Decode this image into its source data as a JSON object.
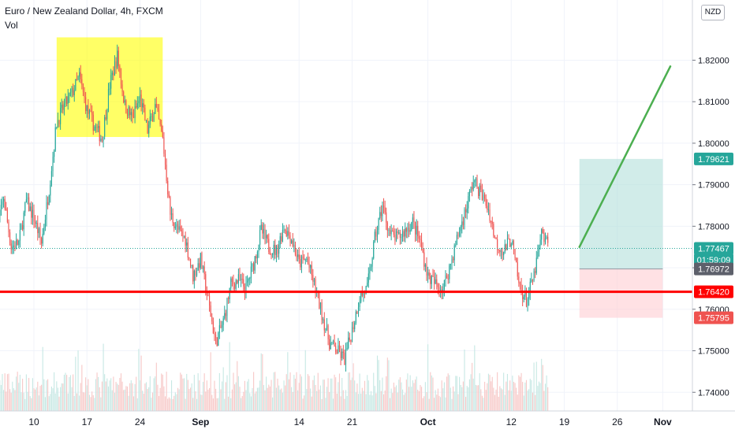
{
  "header": {
    "title": "Euro / New Zealand Dollar, 4h, FXCM",
    "indicator": "Vol",
    "currency": "NZD"
  },
  "colors": {
    "up": "#26a69a",
    "down": "#ef5350",
    "volume_up": "#c7e8e4",
    "volume_down": "#f7c9c8",
    "support": "#ff0000",
    "highlight": "#ffff00",
    "target_zone": "#b2dfdb",
    "stop_zone": "#ffcdd2",
    "projection": "#4caf50",
    "grid": "#f0f3fa"
  },
  "chart_data": {
    "type": "candlestick",
    "y_range": [
      1.7355,
      1.8345
    ],
    "y_ticks": [
      "1.74000",
      "1.75000",
      "1.76000",
      "1.77000",
      "1.78000",
      "1.79000",
      "1.80000",
      "1.81000",
      "1.82000"
    ],
    "x_ticks": [
      "10",
      "17",
      "24",
      "Sep",
      "14",
      "21",
      "Oct",
      "12",
      "19",
      "26",
      "Nov"
    ],
    "price_labels": [
      {
        "text": "1.79621",
        "value": 1.79621,
        "color": "#26a69a"
      },
      {
        "text": "1.77467",
        "value": 1.77467,
        "color": "#26a69a"
      },
      {
        "text": "01:59:09",
        "value": 1.7719,
        "color": "#26a69a"
      },
      {
        "text": "1.76972",
        "value": 1.76972,
        "color": "#5d606b"
      },
      {
        "text": "1.76420",
        "value": 1.7642,
        "color": "#ff0000"
      },
      {
        "text": "1.75795",
        "value": 1.75795,
        "color": "#ef5350"
      }
    ],
    "support_level": 1.7642,
    "last_price": 1.77467,
    "highlight_box": {
      "from": "Aug 13",
      "to": "Aug 27",
      "low": 1.8015,
      "high": 1.8255
    },
    "position": {
      "from": "Oct 21",
      "to": "Nov 1",
      "entry": 1.76972,
      "target": 1.79621,
      "stop": 1.75795
    },
    "projection": {
      "from_date": "Oct 21",
      "from_price": 1.775,
      "to_date": "Nov 2",
      "to_price": 1.8185
    },
    "price_path": [
      {
        "t": "Aug 5",
        "p": 1.777
      },
      {
        "t": "Aug 6",
        "p": 1.787
      },
      {
        "t": "Aug 7",
        "p": 1.775
      },
      {
        "t": "Aug 8",
        "p": 1.776
      },
      {
        "t": "Aug 9",
        "p": 1.786
      },
      {
        "t": "Aug 10",
        "p": 1.782
      },
      {
        "t": "Aug 11",
        "p": 1.776
      },
      {
        "t": "Aug 12",
        "p": 1.789
      },
      {
        "t": "Aug 13",
        "p": 1.805
      },
      {
        "t": "Aug 14",
        "p": 1.809
      },
      {
        "t": "Aug 15",
        "p": 1.812
      },
      {
        "t": "Aug 16",
        "p": 1.816
      },
      {
        "t": "Aug 17",
        "p": 1.808
      },
      {
        "t": "Aug 18",
        "p": 1.804
      },
      {
        "t": "Aug 19",
        "p": 1.801
      },
      {
        "t": "Aug 20",
        "p": 1.814
      },
      {
        "t": "Aug 21",
        "p": 1.821
      },
      {
        "t": "Aug 22",
        "p": 1.809
      },
      {
        "t": "Aug 23",
        "p": 1.806
      },
      {
        "t": "Aug 24",
        "p": 1.811
      },
      {
        "t": "Aug 25",
        "p": 1.803
      },
      {
        "t": "Aug 26",
        "p": 1.809
      },
      {
        "t": "Aug 27",
        "p": 1.801
      },
      {
        "t": "Aug 28",
        "p": 1.783
      },
      {
        "t": "Aug 29",
        "p": 1.779
      },
      {
        "t": "Aug 30",
        "p": 1.777
      },
      {
        "t": "Aug 31",
        "p": 1.768
      },
      {
        "t": "Sep 1",
        "p": 1.772
      },
      {
        "t": "Sep 2",
        "p": 1.762
      },
      {
        "t": "Sep 3",
        "p": 1.752
      },
      {
        "t": "Sep 4",
        "p": 1.757
      },
      {
        "t": "Sep 5",
        "p": 1.766
      },
      {
        "t": "Sep 6",
        "p": 1.767
      },
      {
        "t": "Sep 7",
        "p": 1.765
      },
      {
        "t": "Sep 8",
        "p": 1.771
      },
      {
        "t": "Sep 9",
        "p": 1.779
      },
      {
        "t": "Sep 10",
        "p": 1.775
      },
      {
        "t": "Sep 11",
        "p": 1.774
      },
      {
        "t": "Sep 12",
        "p": 1.78
      },
      {
        "t": "Sep 13",
        "p": 1.777
      },
      {
        "t": "Sep 14",
        "p": 1.771
      },
      {
        "t": "Sep 15",
        "p": 1.772
      },
      {
        "t": "Sep 16",
        "p": 1.766
      },
      {
        "t": "Sep 17",
        "p": 1.759
      },
      {
        "t": "Sep 18",
        "p": 1.752
      },
      {
        "t": "Sep 19",
        "p": 1.75
      },
      {
        "t": "Sep 20",
        "p": 1.748
      },
      {
        "t": "Sep 21",
        "p": 1.755
      },
      {
        "t": "Sep 22",
        "p": 1.763
      },
      {
        "t": "Sep 23",
        "p": 1.765
      },
      {
        "t": "Sep 24",
        "p": 1.777
      },
      {
        "t": "Sep 25",
        "p": 1.785
      },
      {
        "t": "Sep 26",
        "p": 1.778
      },
      {
        "t": "Sep 27",
        "p": 1.777
      },
      {
        "t": "Sep 28",
        "p": 1.779
      },
      {
        "t": "Sep 29",
        "p": 1.781
      },
      {
        "t": "Sep 30",
        "p": 1.776
      },
      {
        "t": "Oct 1",
        "p": 1.768
      },
      {
        "t": "Oct 2",
        "p": 1.766
      },
      {
        "t": "Oct 3",
        "p": 1.765
      },
      {
        "t": "Oct 4",
        "p": 1.771
      },
      {
        "t": "Oct 5",
        "p": 1.778
      },
      {
        "t": "Oct 6",
        "p": 1.784
      },
      {
        "t": "Oct 7",
        "p": 1.791
      },
      {
        "t": "Oct 8",
        "p": 1.788
      },
      {
        "t": "Oct 9",
        "p": 1.784
      },
      {
        "t": "Oct 10",
        "p": 1.776
      },
      {
        "t": "Oct 11",
        "p": 1.774
      },
      {
        "t": "Oct 12",
        "p": 1.777
      },
      {
        "t": "Oct 13",
        "p": 1.766
      },
      {
        "t": "Oct 14",
        "p": 1.762
      },
      {
        "t": "Oct 15",
        "p": 1.768
      },
      {
        "t": "Oct 16",
        "p": 1.778
      },
      {
        "t": "Oct 17",
        "p": 1.775
      }
    ]
  }
}
